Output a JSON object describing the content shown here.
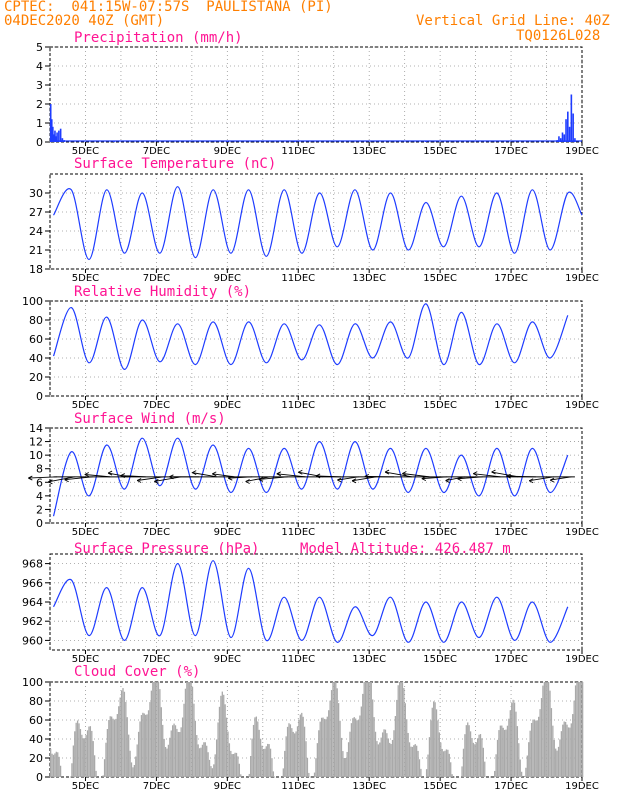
{
  "header": {
    "station": "CPTEC:  041:15W-07:57S  PAULISTANA (PI)",
    "date": "04DEC2020 40Z (GMT)",
    "grid_note": "Vertical Grid Line: 40Z",
    "code": "TQ0126L028"
  },
  "colors": {
    "header": "#ff7f00",
    "title": "#ff1493",
    "line": "#1e3cff",
    "cloud": "#a9a9a9"
  },
  "chart_data": [
    {
      "type": "bar",
      "id": "precip",
      "title": "Precipitation (mm/h)",
      "xlabel": "",
      "ylabel": "",
      "ylim": [
        0,
        5
      ],
      "yticks": [
        0,
        1,
        2,
        3,
        4,
        5
      ],
      "xlim_days": [
        4,
        19
      ],
      "xtick_labels": [
        "5DEC",
        "7DEC",
        "9DEC",
        "11DEC",
        "13DEC",
        "15DEC",
        "17DEC",
        "19DEC"
      ],
      "x_days": [
        4.02,
        4.05,
        4.08,
        4.11,
        4.14,
        4.17,
        4.2,
        4.25,
        4.3,
        4.35,
        4.4,
        5.8,
        9.0,
        10.9,
        14.6,
        18.3,
        18.35,
        18.4,
        18.45,
        18.5,
        18.55,
        18.6,
        18.65,
        18.7,
        18.75,
        18.8
      ],
      "values": [
        2.0,
        1.2,
        0.8,
        0.4,
        0.6,
        0.3,
        0.5,
        0.6,
        0.7,
        0.2,
        0.1,
        0.05,
        0.05,
        0.05,
        0.05,
        0.1,
        0.3,
        0.2,
        0.5,
        0.4,
        1.2,
        1.6,
        0.8,
        2.5,
        1.5,
        0.2
      ]
    },
    {
      "type": "line",
      "id": "temp",
      "title": "Surface Temperature (nC)",
      "ylim": [
        18,
        33
      ],
      "yticks": [
        18,
        21,
        24,
        27,
        30
      ],
      "xlim_days": [
        4,
        19
      ],
      "xtick_labels": [
        "5DEC",
        "7DEC",
        "9DEC",
        "11DEC",
        "13DEC",
        "15DEC",
        "17DEC",
        "19DEC"
      ],
      "min": [
        26.5,
        19.5,
        20.5,
        20.5,
        19.8,
        20.5,
        20.0,
        20.5,
        21.5,
        21.0,
        21.0,
        21.5,
        21.5,
        20.5,
        21.0,
        20.5
      ],
      "max": [
        30.5,
        30.5,
        30.0,
        31.0,
        30.5,
        30.5,
        30.5,
        30.0,
        30.5,
        30.0,
        28.5,
        29.5,
        30.0,
        30.5,
        30.0
      ],
      "end": 26.5
    },
    {
      "type": "line",
      "id": "rh",
      "title": "Relative Humidity (%)",
      "ylim": [
        0,
        100
      ],
      "yticks": [
        0,
        20,
        40,
        60,
        80,
        100
      ],
      "xlim_days": [
        4,
        19
      ],
      "xtick_labels": [
        "5DEC",
        "7DEC",
        "9DEC",
        "11DEC",
        "13DEC",
        "15DEC",
        "17DEC",
        "19DEC"
      ],
      "max": [
        93,
        83,
        80,
        76,
        78,
        78,
        76,
        75,
        76,
        78,
        97,
        88,
        76,
        78,
        85,
        55
      ],
      "min": [
        42,
        35,
        28,
        36,
        33,
        33,
        35,
        38,
        33,
        40,
        40,
        33,
        33,
        35,
        40
      ]
    },
    {
      "type": "line",
      "id": "wind",
      "title": "Surface Wind (m/s)",
      "ylim": [
        0,
        14
      ],
      "yticks": [
        0,
        2,
        4,
        6,
        8,
        10,
        12,
        14
      ],
      "xlim_days": [
        4,
        19
      ],
      "xtick_labels": [
        "5DEC",
        "7DEC",
        "9DEC",
        "11DEC",
        "13DEC",
        "15DEC",
        "17DEC",
        "19DEC"
      ],
      "max": [
        10.5,
        11.5,
        12.5,
        12.5,
        11.5,
        11.0,
        11.0,
        12.0,
        12.0,
        11.0,
        11.0,
        10.0,
        11.0,
        11.0,
        10.0
      ],
      "min": [
        1.0,
        4.0,
        5.0,
        5.5,
        5.0,
        4.5,
        4.5,
        5.0,
        5.0,
        5.0,
        4.5,
        4.5,
        4.0,
        4.0,
        4.5,
        3.5
      ]
    },
    {
      "type": "line",
      "id": "pres",
      "title": "Surface Pressure (hPa)",
      "annotation": "Model Altitude: 426.487 m",
      "ylim": [
        959,
        969
      ],
      "yticks": [
        960,
        962,
        964,
        966,
        968
      ],
      "xlim_days": [
        4,
        19
      ],
      "xtick_labels": [
        "5DEC",
        "7DEC",
        "9DEC",
        "11DEC",
        "13DEC",
        "15DEC",
        "17DEC",
        "19DEC"
      ],
      "max": [
        966.3,
        965.5,
        965.5,
        968.0,
        968.3,
        967.5,
        964.5,
        964.5,
        963.5,
        964.5,
        964.0,
        964.0,
        964.5,
        964.0,
        963.5
      ],
      "min": [
        963.5,
        960.5,
        960.0,
        960.5,
        960.5,
        960.3,
        960.0,
        960.0,
        959.8,
        960.5,
        959.8,
        959.8,
        960.3,
        960.0,
        959.8,
        961.5
      ]
    },
    {
      "type": "bar",
      "id": "cloud",
      "title": "Cloud Cover (%)",
      "ylim": [
        0,
        100
      ],
      "yticks": [
        0,
        20,
        40,
        60,
        80,
        100
      ],
      "xlim_days": [
        4,
        19
      ],
      "xtick_labels": [
        "5DEC",
        "7DEC",
        "9DEC",
        "11DEC",
        "13DEC",
        "15DEC",
        "17DEC",
        "19DEC"
      ],
      "daily_pattern_note": ""
    }
  ]
}
